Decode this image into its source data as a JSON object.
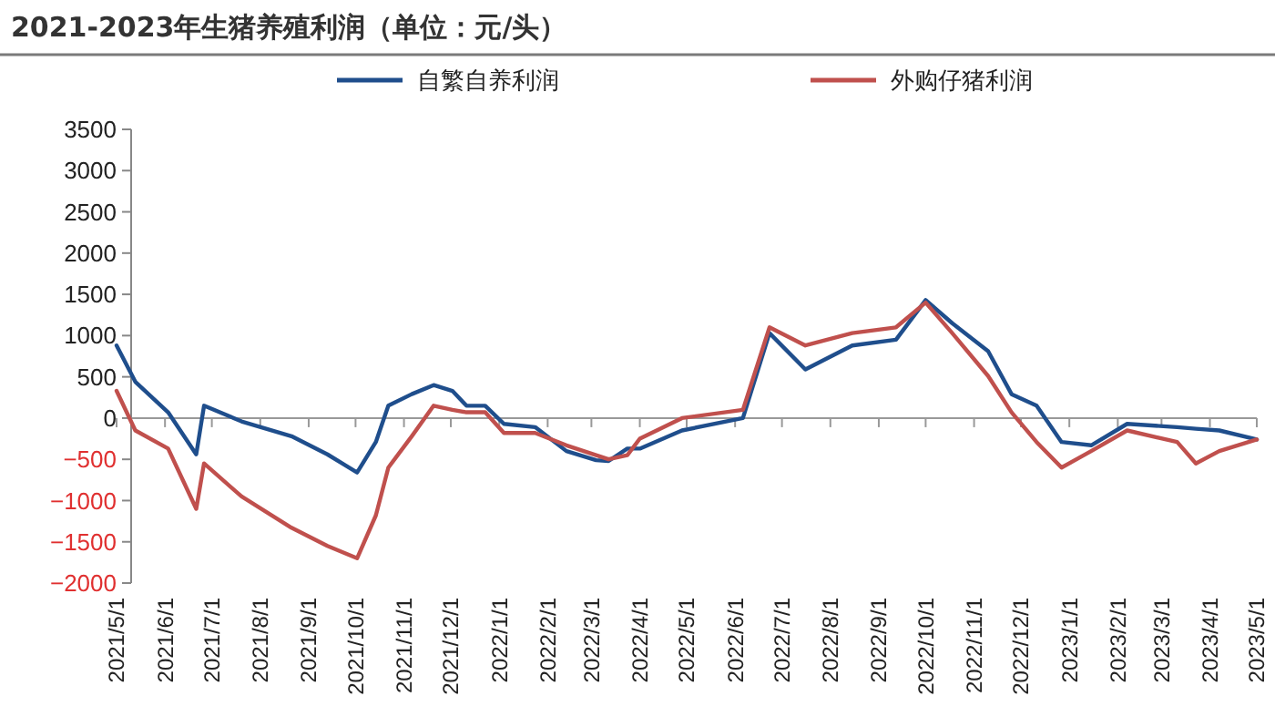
{
  "chart_data": {
    "type": "line",
    "title": "2021-2023年生猪养殖利润（单位：元/头）",
    "x": [
      "2021-05-01",
      "2021-05-13",
      "2021-06-03",
      "2021-06-21",
      "2021-06-26",
      "2021-07-20",
      "2021-08-21",
      "2021-09-13",
      "2021-10-02",
      "2021-10-14",
      "2021-10-22",
      "2021-11-06",
      "2021-11-20",
      "2021-12-02",
      "2021-12-11",
      "2021-12-23",
      "2022-01-04",
      "2022-01-24",
      "2022-02-13",
      "2022-03-04",
      "2022-03-12",
      "2022-03-24",
      "2022-04-01",
      "2022-04-28",
      "2022-06-06",
      "2022-06-23",
      "2022-07-16",
      "2022-08-15",
      "2022-09-12",
      "2022-10-01",
      "2022-10-18",
      "2022-11-10",
      "2022-11-25",
      "2022-12-11",
      "2022-12-27",
      "2023-01-15",
      "2023-02-07",
      "2023-03-11",
      "2023-03-23",
      "2023-04-07",
      "2023-05-01"
    ],
    "series": [
      {
        "name": "自繁自养利润",
        "color": "#1f4e8c",
        "values": [
          880,
          440,
          70,
          -440,
          150,
          -40,
          -220,
          -440,
          -660,
          -290,
          150,
          290,
          400,
          330,
          150,
          150,
          -70,
          -110,
          -400,
          -510,
          -520,
          -370,
          -370,
          -150,
          0,
          1030,
          590,
          880,
          950,
          1430,
          1150,
          810,
          290,
          150,
          -290,
          -330,
          -70,
          -110,
          -130,
          -150,
          -260
        ]
      },
      {
        "name": "外购仔猪利润",
        "color": "#c0504d",
        "values": [
          330,
          -150,
          -370,
          -1100,
          -550,
          -950,
          -1330,
          -1550,
          -1700,
          -1180,
          -600,
          -220,
          150,
          100,
          70,
          70,
          -180,
          -180,
          -330,
          -450,
          -500,
          -450,
          -250,
          0,
          100,
          1100,
          880,
          1030,
          1100,
          1400,
          1030,
          510,
          70,
          -290,
          -600,
          -400,
          -150,
          -290,
          -550,
          -400,
          -260
        ]
      }
    ],
    "xlim": [
      "2021-05-01",
      "2023-05-01"
    ],
    "xticks": [
      {
        "value": "2021-05-01",
        "label": "2021/5/1"
      },
      {
        "value": "2021-06-01",
        "label": "2021/6/1"
      },
      {
        "value": "2021-07-01",
        "label": "2021/7/1"
      },
      {
        "value": "2021-08-01",
        "label": "2021/8/1"
      },
      {
        "value": "2021-09-01",
        "label": "2021/9/1"
      },
      {
        "value": "2021-10-01",
        "label": "2021/10/1"
      },
      {
        "value": "2021-11-01",
        "label": "2021/11/1"
      },
      {
        "value": "2021-12-01",
        "label": "2021/12/1"
      },
      {
        "value": "2022-01-01",
        "label": "2022/1/1"
      },
      {
        "value": "2022-02-01",
        "label": "2022/2/1"
      },
      {
        "value": "2022-03-01",
        "label": "2022/3/1"
      },
      {
        "value": "2022-04-01",
        "label": "2022/4/1"
      },
      {
        "value": "2022-05-01",
        "label": "2022/5/1"
      },
      {
        "value": "2022-06-01",
        "label": "2022/6/1"
      },
      {
        "value": "2022-07-01",
        "label": "2022/7/1"
      },
      {
        "value": "2022-08-01",
        "label": "2022/8/1"
      },
      {
        "value": "2022-09-01",
        "label": "2022/9/1"
      },
      {
        "value": "2022-10-01",
        "label": "2022/10/1"
      },
      {
        "value": "2022-11-01",
        "label": "2022/11/1"
      },
      {
        "value": "2022-12-01",
        "label": "2022/12/1"
      },
      {
        "value": "2023-01-01",
        "label": "2023/1/1"
      },
      {
        "value": "2023-02-01",
        "label": "2023/2/1"
      },
      {
        "value": "2023-03-01",
        "label": "2023/3/1"
      },
      {
        "value": "2023-04-01",
        "label": "2023/4/1"
      },
      {
        "value": "2023-05-01",
        "label": "2023/5/1"
      }
    ],
    "ylim": [
      -2000,
      3500
    ],
    "yticks": [
      -2000,
      -1500,
      -1000,
      -500,
      0,
      500,
      1000,
      1500,
      2000,
      2500,
      3000,
      3500
    ],
    "legend": "top",
    "line_style": "solid"
  }
}
